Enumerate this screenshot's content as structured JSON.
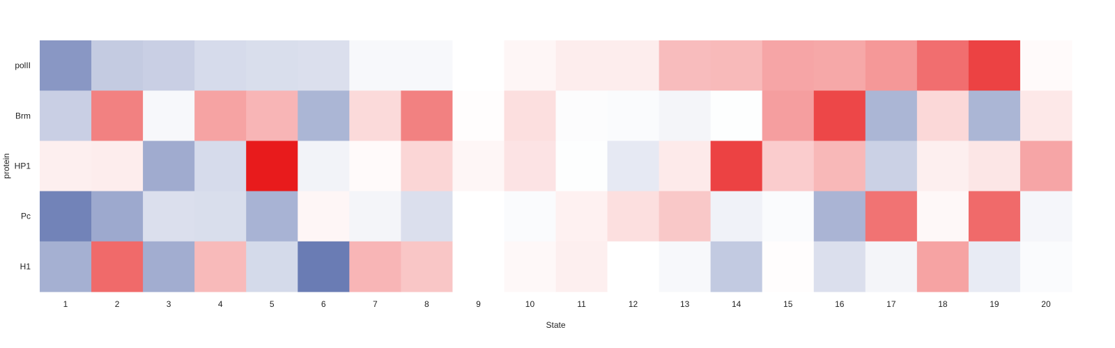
{
  "chart_data": {
    "type": "heatmap",
    "title": "",
    "xlabel": "State",
    "ylabel": "protein",
    "x_categories": [
      "1",
      "2",
      "3",
      "4",
      "5",
      "6",
      "7",
      "8",
      "9",
      "10",
      "11",
      "12",
      "13",
      "14",
      "15",
      "16",
      "17",
      "18",
      "19",
      "20"
    ],
    "y_categories": [
      "polII",
      "Brm",
      "HP1",
      "Pc",
      "H1"
    ],
    "color_scale": {
      "low": "#5b6fad",
      "mid": "#ffffff",
      "high": "#e8191a",
      "range": [
        -1,
        1
      ]
    },
    "values": [
      [
        -0.72,
        -0.36,
        -0.33,
        -0.25,
        -0.23,
        -0.22,
        -0.05,
        -0.05,
        0.0,
        0.04,
        0.08,
        0.08,
        0.29,
        0.3,
        0.39,
        0.38,
        0.45,
        0.63,
        0.82,
        0.02
      ],
      [
        -0.33,
        0.55,
        -0.05,
        0.4,
        0.32,
        -0.51,
        0.16,
        0.55,
        0.01,
        0.14,
        -0.02,
        -0.03,
        -0.07,
        -0.01,
        0.42,
        0.8,
        -0.51,
        0.17,
        -0.51,
        0.1
      ],
      [
        0.07,
        0.08,
        -0.58,
        -0.25,
        0.99,
        -0.08,
        0.02,
        0.18,
        0.04,
        0.12,
        -0.01,
        -0.15,
        0.09,
        0.82,
        0.22,
        0.31,
        -0.32,
        0.07,
        0.11,
        0.39
      ],
      [
        -0.86,
        -0.6,
        -0.22,
        -0.23,
        -0.53,
        0.04,
        -0.07,
        -0.22,
        0.0,
        -0.03,
        0.06,
        0.14,
        0.24,
        -0.09,
        -0.03,
        -0.52,
        0.61,
        0.03,
        0.65,
        -0.06
      ],
      [
        -0.55,
        0.65,
        -0.57,
        0.3,
        -0.26,
        -0.91,
        0.32,
        0.25,
        0.0,
        0.03,
        0.07,
        0.0,
        -0.05,
        -0.37,
        0.01,
        -0.22,
        -0.07,
        0.4,
        -0.14,
        -0.03
      ]
    ]
  }
}
